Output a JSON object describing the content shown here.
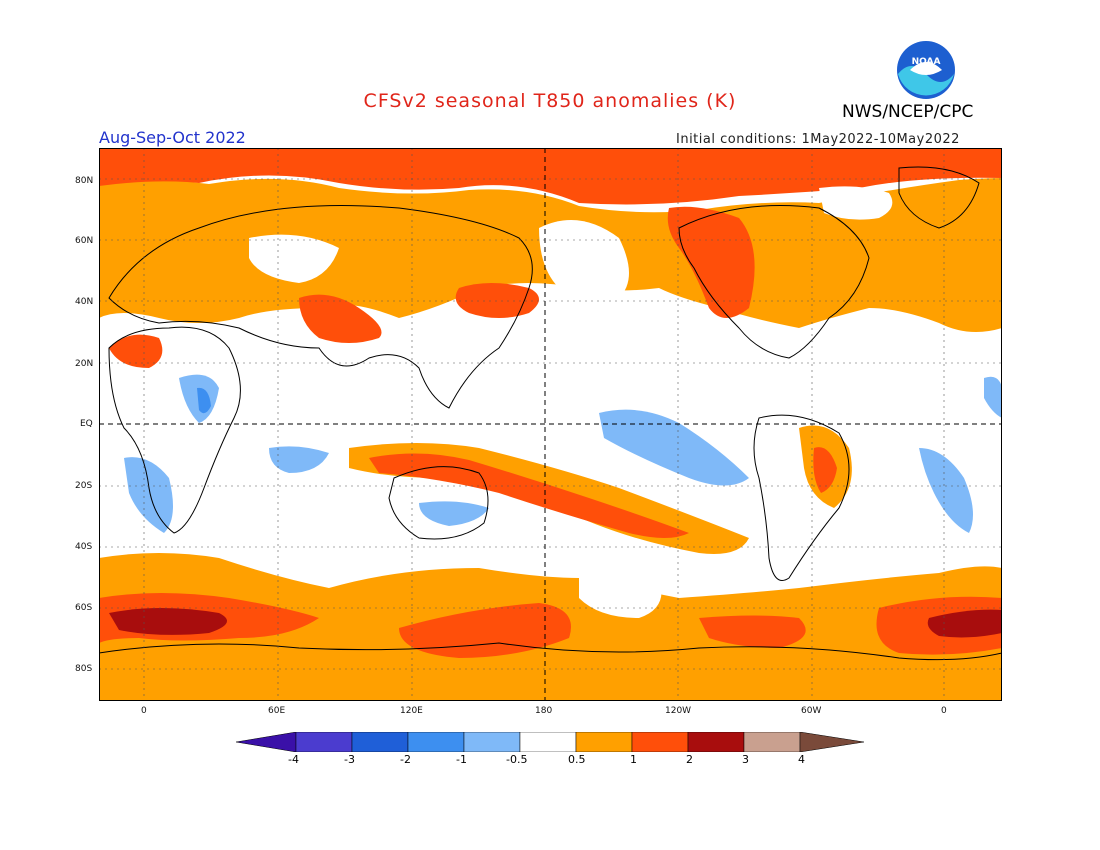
{
  "title": "CFSv2 seasonal T850 anomalies (K)",
  "agency": "NWS/NCEP/CPC",
  "logo_text": "NOAA",
  "season": "Aug-Sep-Oct 2022",
  "initial_conditions": "Initial conditions: 1May2022-10May2022",
  "lat_labels": [
    "80N",
    "60N",
    "40N",
    "20N",
    "EQ",
    "20S",
    "40S",
    "60S",
    "80S"
  ],
  "lon_labels": [
    "0",
    "60E",
    "120E",
    "180",
    "120W",
    "60W",
    "0"
  ],
  "colorbar_labels": [
    "-4",
    "-3",
    "-2",
    "-1",
    "-0.5",
    "0.5",
    "1",
    "2",
    "3",
    "4"
  ],
  "colors": {
    "title": "#e0251a",
    "season": "#2233cc",
    "bins": [
      "#3a10a8",
      "#4b3ccf",
      "#1f5fd8",
      "#3d8ff0",
      "#7fb9f8",
      "#ffffff",
      "#ffa000",
      "#ff4f0a",
      "#a80d0d",
      "#c9a08f",
      "#7a4a3a"
    ]
  }
}
